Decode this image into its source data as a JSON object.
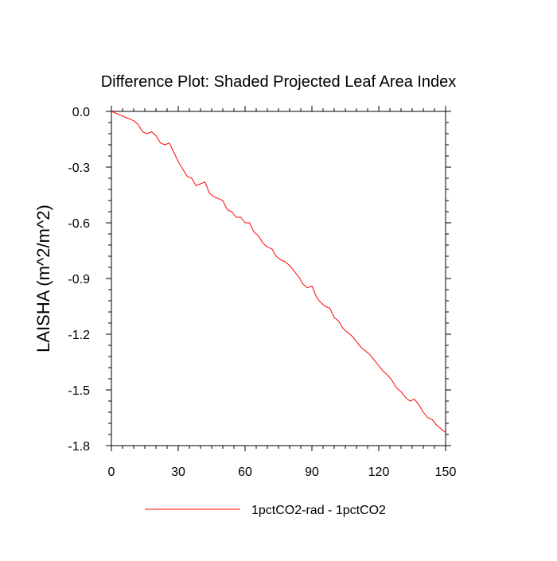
{
  "chart_data": {
    "type": "line",
    "title": "Difference Plot: Shaded Projected Leaf Area Index",
    "xlabel": "",
    "ylabel": "LAISHA  (m^2/m^2)",
    "xlim": [
      0,
      150
    ],
    "ylim": [
      -1.8,
      0.0
    ],
    "xticks": [
      0,
      30,
      60,
      90,
      120,
      150
    ],
    "xtick_labels": [
      "0",
      "30",
      "60",
      "90",
      "120",
      "150"
    ],
    "yticks": [
      0.0,
      -0.3,
      -0.6,
      -0.9,
      -1.2,
      -1.5,
      -1.8
    ],
    "ytick_labels": [
      "0.0",
      "-0.3",
      "-0.6",
      "-0.9",
      "-1.2",
      "-1.5",
      "-1.8"
    ],
    "grid": false,
    "legend_position": "bottom-center",
    "series": [
      {
        "name": "1pctCO2-rad - 1pctCO2",
        "color": "#ff0000",
        "x": [
          0,
          2,
          4,
          6,
          8,
          10,
          12,
          14,
          16,
          18,
          20,
          22,
          24,
          26,
          28,
          30,
          32,
          34,
          36,
          38,
          40,
          42,
          44,
          46,
          48,
          50,
          52,
          54,
          56,
          58,
          60,
          62,
          64,
          66,
          68,
          70,
          72,
          74,
          76,
          78,
          80,
          82,
          84,
          86,
          88,
          90,
          92,
          94,
          96,
          98,
          100,
          102,
          104,
          106,
          108,
          110,
          112,
          114,
          116,
          118,
          120,
          122,
          124,
          126,
          128,
          130,
          132,
          134,
          136,
          138,
          140,
          142,
          144,
          146,
          148,
          150
        ],
        "y": [
          0.0,
          -0.01,
          -0.02,
          -0.03,
          -0.04,
          -0.05,
          -0.07,
          -0.11,
          -0.12,
          -0.11,
          -0.13,
          -0.17,
          -0.18,
          -0.17,
          -0.22,
          -0.27,
          -0.31,
          -0.35,
          -0.36,
          -0.4,
          -0.39,
          -0.38,
          -0.44,
          -0.46,
          -0.47,
          -0.48,
          -0.53,
          -0.54,
          -0.57,
          -0.57,
          -0.6,
          -0.6,
          -0.65,
          -0.67,
          -0.71,
          -0.73,
          -0.74,
          -0.78,
          -0.8,
          -0.81,
          -0.83,
          -0.86,
          -0.89,
          -0.93,
          -0.95,
          -0.94,
          -1.0,
          -1.03,
          -1.05,
          -1.06,
          -1.11,
          -1.13,
          -1.17,
          -1.19,
          -1.21,
          -1.24,
          -1.27,
          -1.29,
          -1.31,
          -1.34,
          -1.37,
          -1.4,
          -1.42,
          -1.45,
          -1.49,
          -1.51,
          -1.54,
          -1.56,
          -1.55,
          -1.58,
          -1.62,
          -1.65,
          -1.66,
          -1.69,
          -1.71,
          -1.73
        ]
      }
    ]
  }
}
